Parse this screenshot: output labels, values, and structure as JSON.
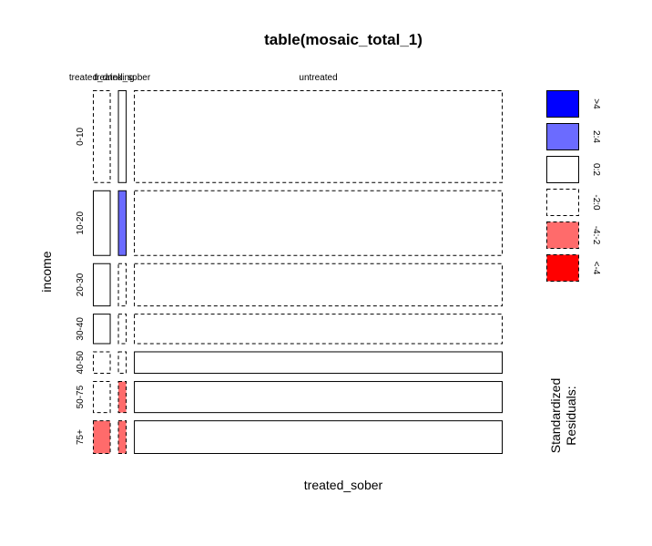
{
  "chart_data": {
    "type": "mosaic",
    "title": "table(mosaic_total_1)",
    "xlabel": "treated_sober",
    "ylabel": "income",
    "x_categories": [
      "treated_drinking",
      "treated_sober",
      "untreated"
    ],
    "x_category_labels": [
      "treated_drinking",
      "treated_sober",
      "untreated"
    ],
    "x_proportions": [
      0.045,
      0.022,
      0.933
    ],
    "y_categories": [
      "0-10",
      "10-20",
      "20-30",
      "30-40",
      "40-50",
      "50-75",
      "75+"
    ],
    "y_proportions": [
      0.29,
      0.205,
      0.135,
      0.095,
      0.07,
      0.1,
      0.105
    ],
    "cells": [
      {
        "income": "0-10",
        "treated_sober": "treated_drinking",
        "residual_bin": "-2:0"
      },
      {
        "income": "10-20",
        "treated_sober": "treated_drinking",
        "residual_bin": "0:2"
      },
      {
        "income": "20-30",
        "treated_sober": "treated_drinking",
        "residual_bin": "0:2"
      },
      {
        "income": "30-40",
        "treated_sober": "treated_drinking",
        "residual_bin": "0:2"
      },
      {
        "income": "40-50",
        "treated_sober": "treated_drinking",
        "residual_bin": "-2:0"
      },
      {
        "income": "50-75",
        "treated_sober": "treated_drinking",
        "residual_bin": "-2:0"
      },
      {
        "income": "75+",
        "treated_sober": "treated_drinking",
        "residual_bin": "-4:-2"
      },
      {
        "income": "0-10",
        "treated_sober": "treated_sober",
        "residual_bin": "0:2"
      },
      {
        "income": "10-20",
        "treated_sober": "treated_sober",
        "residual_bin": "2:4"
      },
      {
        "income": "20-30",
        "treated_sober": "treated_sober",
        "residual_bin": "-2:0"
      },
      {
        "income": "30-40",
        "treated_sober": "treated_sober",
        "residual_bin": "-2:0"
      },
      {
        "income": "40-50",
        "treated_sober": "treated_sober",
        "residual_bin": "-2:0"
      },
      {
        "income": "50-75",
        "treated_sober": "treated_sober",
        "residual_bin": "-4:-2"
      },
      {
        "income": "75+",
        "treated_sober": "treated_sober",
        "residual_bin": "-4:-2"
      },
      {
        "income": "0-10",
        "treated_sober": "untreated",
        "residual_bin": "-2:0"
      },
      {
        "income": "10-20",
        "treated_sober": "untreated",
        "residual_bin": "-2:0"
      },
      {
        "income": "20-30",
        "treated_sober": "untreated",
        "residual_bin": "-2:0"
      },
      {
        "income": "30-40",
        "treated_sober": "untreated",
        "residual_bin": "-2:0"
      },
      {
        "income": "40-50",
        "treated_sober": "untreated",
        "residual_bin": "0:2"
      },
      {
        "income": "50-75",
        "treated_sober": "untreated",
        "residual_bin": "0:2"
      },
      {
        "income": "75+",
        "treated_sober": "untreated",
        "residual_bin": "0:2"
      }
    ],
    "legend": {
      "title_lines": [
        "Standardized",
        "Residuals:"
      ],
      "placement": "right",
      "bins": [
        {
          "label": ">4",
          "fill": "#0000ff",
          "dashed": false
        },
        {
          "label": "2:4",
          "fill": "#6b6bff",
          "dashed": false
        },
        {
          "label": "0:2",
          "fill": "#ffffff",
          "dashed": false
        },
        {
          "label": "-2:0",
          "fill": "#ffffff",
          "dashed": true
        },
        {
          "label": "-4:-2",
          "fill": "#ff6b6b",
          "dashed": true
        },
        {
          "label": "<-4",
          "fill": "#ff0000",
          "dashed": true
        }
      ]
    }
  }
}
